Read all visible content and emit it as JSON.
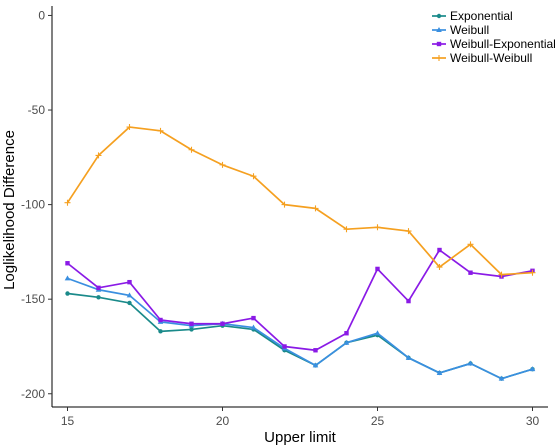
{
  "chart_data": {
    "type": "line",
    "title": "",
    "xlabel": "Upper limit",
    "ylabel": "Loglikelihood Difference",
    "xlim": [
      14.5,
      30.5
    ],
    "ylim": [
      -207,
      5
    ],
    "x_ticks": [
      15,
      20,
      25,
      30
    ],
    "y_ticks": [
      0,
      -50,
      -100,
      -150,
      -200
    ],
    "grid": false,
    "legend_position": "top-right",
    "x": [
      15,
      16,
      17,
      18,
      19,
      20,
      21,
      22,
      23,
      24,
      25,
      26,
      27,
      28,
      29,
      30
    ],
    "series": [
      {
        "name": "Exponential",
        "color": "#1a8a8a",
        "marker": "circle",
        "values": [
          -147,
          -149,
          -152,
          -167,
          -166,
          -164,
          -166,
          -177,
          -185,
          -173,
          -169,
          -181,
          -189,
          -184,
          -192,
          -187
        ]
      },
      {
        "name": "Weibull",
        "color": "#3a8fe0",
        "marker": "triangle",
        "values": [
          -139,
          -145,
          -148,
          -162,
          -164,
          -163,
          -165,
          -176,
          -185,
          -173,
          -168,
          -181,
          -189,
          -184,
          -192,
          -187
        ]
      },
      {
        "name": "Weibull-Exponential",
        "color": "#8a1ae6",
        "marker": "square",
        "values": [
          -131,
          -144,
          -141,
          -161,
          -163,
          -163,
          -160,
          -175,
          -177,
          -168,
          -134,
          -151,
          -124,
          -136,
          -138,
          -135
        ]
      },
      {
        "name": "Weibull-Weibull",
        "color": "#f5a020",
        "marker": "plus",
        "values": [
          -99,
          -74,
          -59,
          -61,
          -71,
          -79,
          -85,
          -100,
          -102,
          -113,
          -112,
          -114,
          -133,
          -121,
          -137,
          -136
        ]
      }
    ]
  }
}
